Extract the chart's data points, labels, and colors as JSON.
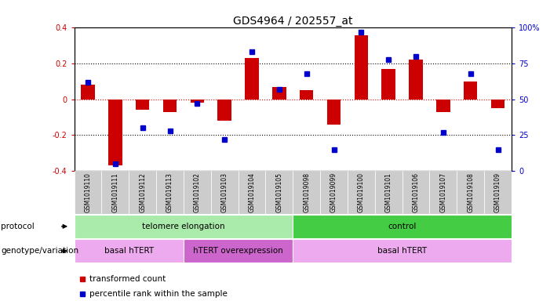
{
  "title": "GDS4964 / 202557_at",
  "samples": [
    "GSM1019110",
    "GSM1019111",
    "GSM1019112",
    "GSM1019113",
    "GSM1019102",
    "GSM1019103",
    "GSM1019104",
    "GSM1019105",
    "GSM1019098",
    "GSM1019099",
    "GSM1019100",
    "GSM1019101",
    "GSM1019106",
    "GSM1019107",
    "GSM1019108",
    "GSM1019109"
  ],
  "transformed_count": [
    0.08,
    -0.37,
    -0.06,
    -0.07,
    -0.02,
    -0.12,
    0.23,
    0.07,
    0.05,
    -0.14,
    0.36,
    0.17,
    0.22,
    -0.07,
    0.1,
    -0.05
  ],
  "percentile_rank": [
    62,
    5,
    30,
    28,
    47,
    22,
    83,
    57,
    68,
    15,
    97,
    78,
    80,
    27,
    68,
    15
  ],
  "ylim": [
    -0.4,
    0.4
  ],
  "y2lim": [
    0,
    100
  ],
  "yticks": [
    -0.4,
    -0.2,
    0.0,
    0.2,
    0.4
  ],
  "y2ticks": [
    0,
    25,
    50,
    75,
    100
  ],
  "y2ticklabels": [
    "0",
    "25",
    "50",
    "75",
    "100%"
  ],
  "bar_color": "#cc0000",
  "dot_color": "#0000cc",
  "zero_line_color": "#cc0000",
  "protocol_labels": [
    {
      "text": "telomere elongation",
      "start": 0,
      "end": 7,
      "color": "#aaeaaa"
    },
    {
      "text": "control",
      "start": 8,
      "end": 15,
      "color": "#44cc44"
    }
  ],
  "genotype_labels": [
    {
      "text": "basal hTERT",
      "start": 0,
      "end": 3,
      "color": "#eeaaee"
    },
    {
      "text": "hTERT overexpression",
      "start": 4,
      "end": 7,
      "color": "#cc66cc"
    },
    {
      "text": "basal hTERT",
      "start": 8,
      "end": 15,
      "color": "#eeaaee"
    }
  ],
  "legend_items": [
    {
      "label": "transformed count",
      "color": "#cc0000"
    },
    {
      "label": "percentile rank within the sample",
      "color": "#0000cc"
    }
  ],
  "sample_bg_color": "#cccccc",
  "title_fontsize": 10,
  "axis_fontsize": 7,
  "tick_fontsize": 7,
  "row_label_fontsize": 7.5,
  "cell_fontsize": 7.5,
  "sample_fontsize": 5.5,
  "legend_fontsize": 7.5
}
